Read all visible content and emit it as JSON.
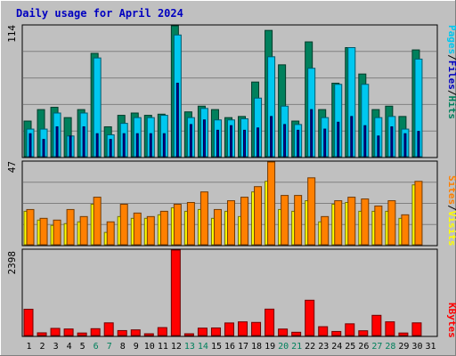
{
  "title": "Daily usage for April 2024",
  "colors": {
    "background": "#c0c0c0",
    "frame": "#808080",
    "grid": "#808080",
    "title": "#0000c0",
    "hits": "#00805c",
    "files": "#00c8f0",
    "pages": "#0000a0",
    "visits": "#ffff00",
    "sites": "#ff8000",
    "kbytes": "#ff0000",
    "weekend_tick": "#00805c",
    "weekday_tick": "#000000"
  },
  "legends": {
    "top": [
      "Pages",
      "/",
      "Files",
      "/",
      "Hits"
    ],
    "middle": [
      "Sites",
      "/",
      "Visits"
    ],
    "bottom": [
      "KBytes"
    ]
  },
  "legend_colors": {
    "top": [
      "#00c8f0",
      "#000000",
      "#0000c0",
      "#000000",
      "#00805c"
    ],
    "middle": [
      "#ff8000",
      "#000000",
      "#ffff00"
    ],
    "bottom": [
      "#ff0000"
    ]
  },
  "chart_data": [
    {
      "type": "bar",
      "title": "Daily usage for April 2024",
      "ylabel": "Pages / Files / Hits",
      "ymax_label": "114",
      "ylim": [
        0,
        114
      ],
      "categories": [
        "1",
        "2",
        "3",
        "4",
        "5",
        "6",
        "7",
        "8",
        "9",
        "10",
        "11",
        "12",
        "13",
        "14",
        "15",
        "16",
        "17",
        "18",
        "19",
        "20",
        "21",
        "22",
        "23",
        "24",
        "25",
        "26",
        "27",
        "28",
        "29",
        "30",
        "31"
      ],
      "weekend_days": [
        "6",
        "7",
        "13",
        "14",
        "20",
        "21",
        "27",
        "28"
      ],
      "series": [
        {
          "name": "Hits",
          "values": [
            31,
            41,
            43,
            34,
            41,
            90,
            26,
            36,
            38,
            36,
            37,
            114,
            39,
            44,
            41,
            34,
            35,
            65,
            110,
            80,
            31,
            100,
            41,
            64,
            95,
            72,
            41,
            44,
            35,
            93,
            0
          ]
        },
        {
          "name": "Files",
          "values": [
            24,
            24,
            38,
            18,
            38,
            86,
            19,
            29,
            34,
            34,
            36,
            106,
            34,
            42,
            32,
            32,
            33,
            51,
            87,
            44,
            28,
            77,
            34,
            63,
            95,
            63,
            34,
            35,
            24,
            85,
            0
          ]
        },
        {
          "name": "Pages",
          "values": [
            20,
            15,
            26,
            18,
            26,
            20,
            15,
            20,
            20,
            20,
            20,
            64,
            28,
            32,
            23,
            27,
            23,
            25,
            35,
            28,
            23,
            41,
            24,
            30,
            35,
            27,
            18,
            26,
            20,
            22,
            0
          ]
        }
      ]
    },
    {
      "type": "bar",
      "ylabel": "Sites / Visits",
      "ymax_label": "47",
      "ylim": [
        0,
        47
      ],
      "categories": [
        "1",
        "2",
        "3",
        "4",
        "5",
        "6",
        "7",
        "8",
        "9",
        "10",
        "11",
        "12",
        "13",
        "14",
        "15",
        "16",
        "17",
        "18",
        "19",
        "20",
        "21",
        "22",
        "23",
        "24",
        "25",
        "26",
        "27",
        "28",
        "29",
        "30",
        "31"
      ],
      "series": [
        {
          "name": "Visits",
          "values": [
            19,
            14,
            11,
            12,
            13,
            23,
            7,
            16,
            15,
            15,
            17,
            21,
            19,
            20,
            15,
            19,
            16,
            30,
            36,
            20,
            19,
            25,
            13,
            23,
            24,
            19,
            19,
            19,
            15,
            34,
            0
          ]
        },
        {
          "name": "Sites",
          "values": [
            20,
            15,
            14,
            20,
            16,
            27,
            13,
            23,
            18,
            16,
            19,
            23,
            24,
            30,
            20,
            25,
            27,
            33,
            47,
            28,
            28,
            38,
            16,
            25,
            27,
            26,
            22,
            25,
            17,
            36,
            0
          ]
        }
      ]
    },
    {
      "type": "bar",
      "ylabel": "KBytes",
      "ymax_label": "2398",
      "ylim": [
        0,
        2398
      ],
      "categories": [
        "1",
        "2",
        "3",
        "4",
        "5",
        "6",
        "7",
        "8",
        "9",
        "10",
        "11",
        "12",
        "13",
        "14",
        "15",
        "16",
        "17",
        "18",
        "19",
        "20",
        "21",
        "22",
        "23",
        "24",
        "25",
        "26",
        "27",
        "28",
        "29",
        "30",
        "31"
      ],
      "series": [
        {
          "name": "KBytes",
          "values": [
            738,
            76,
            201,
            184,
            71,
            192,
            356,
            139,
            159,
            50,
            223,
            2398,
            50,
            208,
            213,
            353,
            384,
            368,
            741,
            182,
            92,
            991,
            248,
            114,
            329,
            134,
            567,
            385,
            71,
            356,
            0
          ]
        }
      ]
    }
  ]
}
